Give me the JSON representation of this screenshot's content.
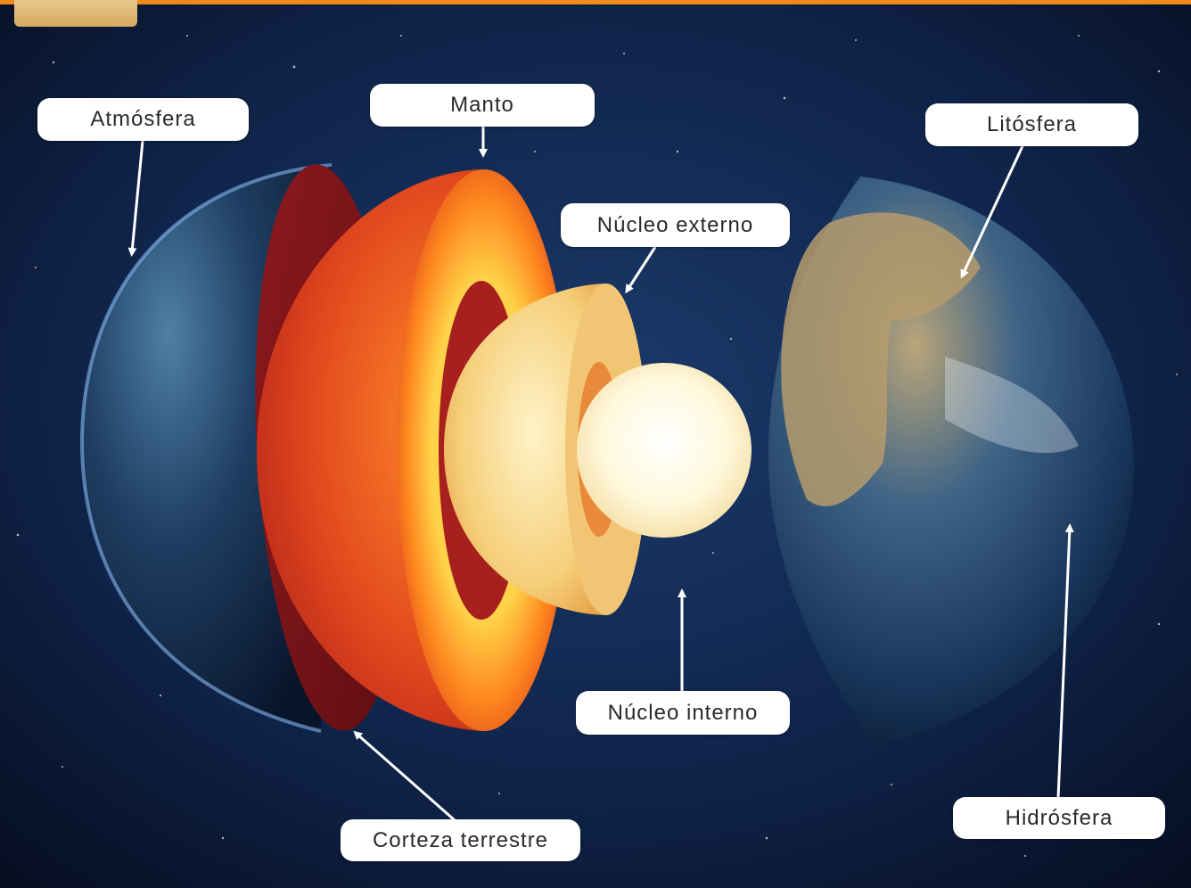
{
  "labels": {
    "atmosfera": "Atmósfera",
    "manto": "Manto",
    "litosfera": "Litósfera",
    "nucleo_externo": "Núcleo externo",
    "nucleo_interno": "Núcleo interno",
    "corteza": "Corteza terrestre",
    "hidrosfera": "Hidrósfera"
  },
  "colors": {
    "accent_bar": "#f08a1c",
    "tab": "#dcb06d",
    "space": "#0b1630",
    "label_bg": "#ffffff",
    "arrow": "#ffffff"
  }
}
